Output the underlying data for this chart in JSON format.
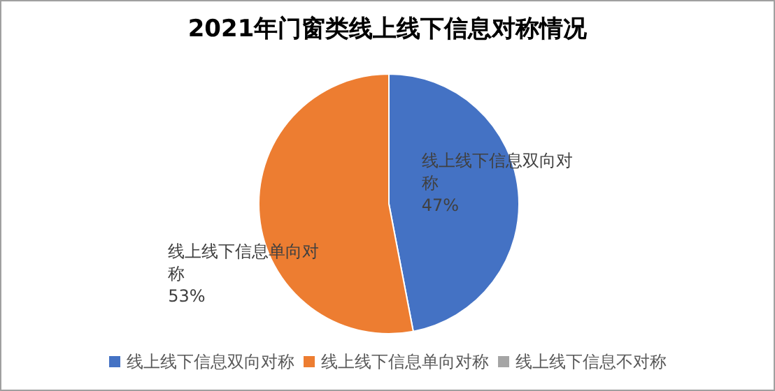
{
  "chart_data": {
    "type": "pie",
    "title": "2021年门窗类线上线下信息对称情况",
    "categories": [
      "线上线下信息双向对称",
      "线上线下信息单向对称",
      "线上线下信息不对称"
    ],
    "values": [
      47,
      53,
      0
    ],
    "colors": [
      "#4472c4",
      "#ed7d31",
      "#a5a5a5"
    ],
    "value_labels": [
      "47%",
      "53%",
      null
    ],
    "legend": "bottom"
  }
}
